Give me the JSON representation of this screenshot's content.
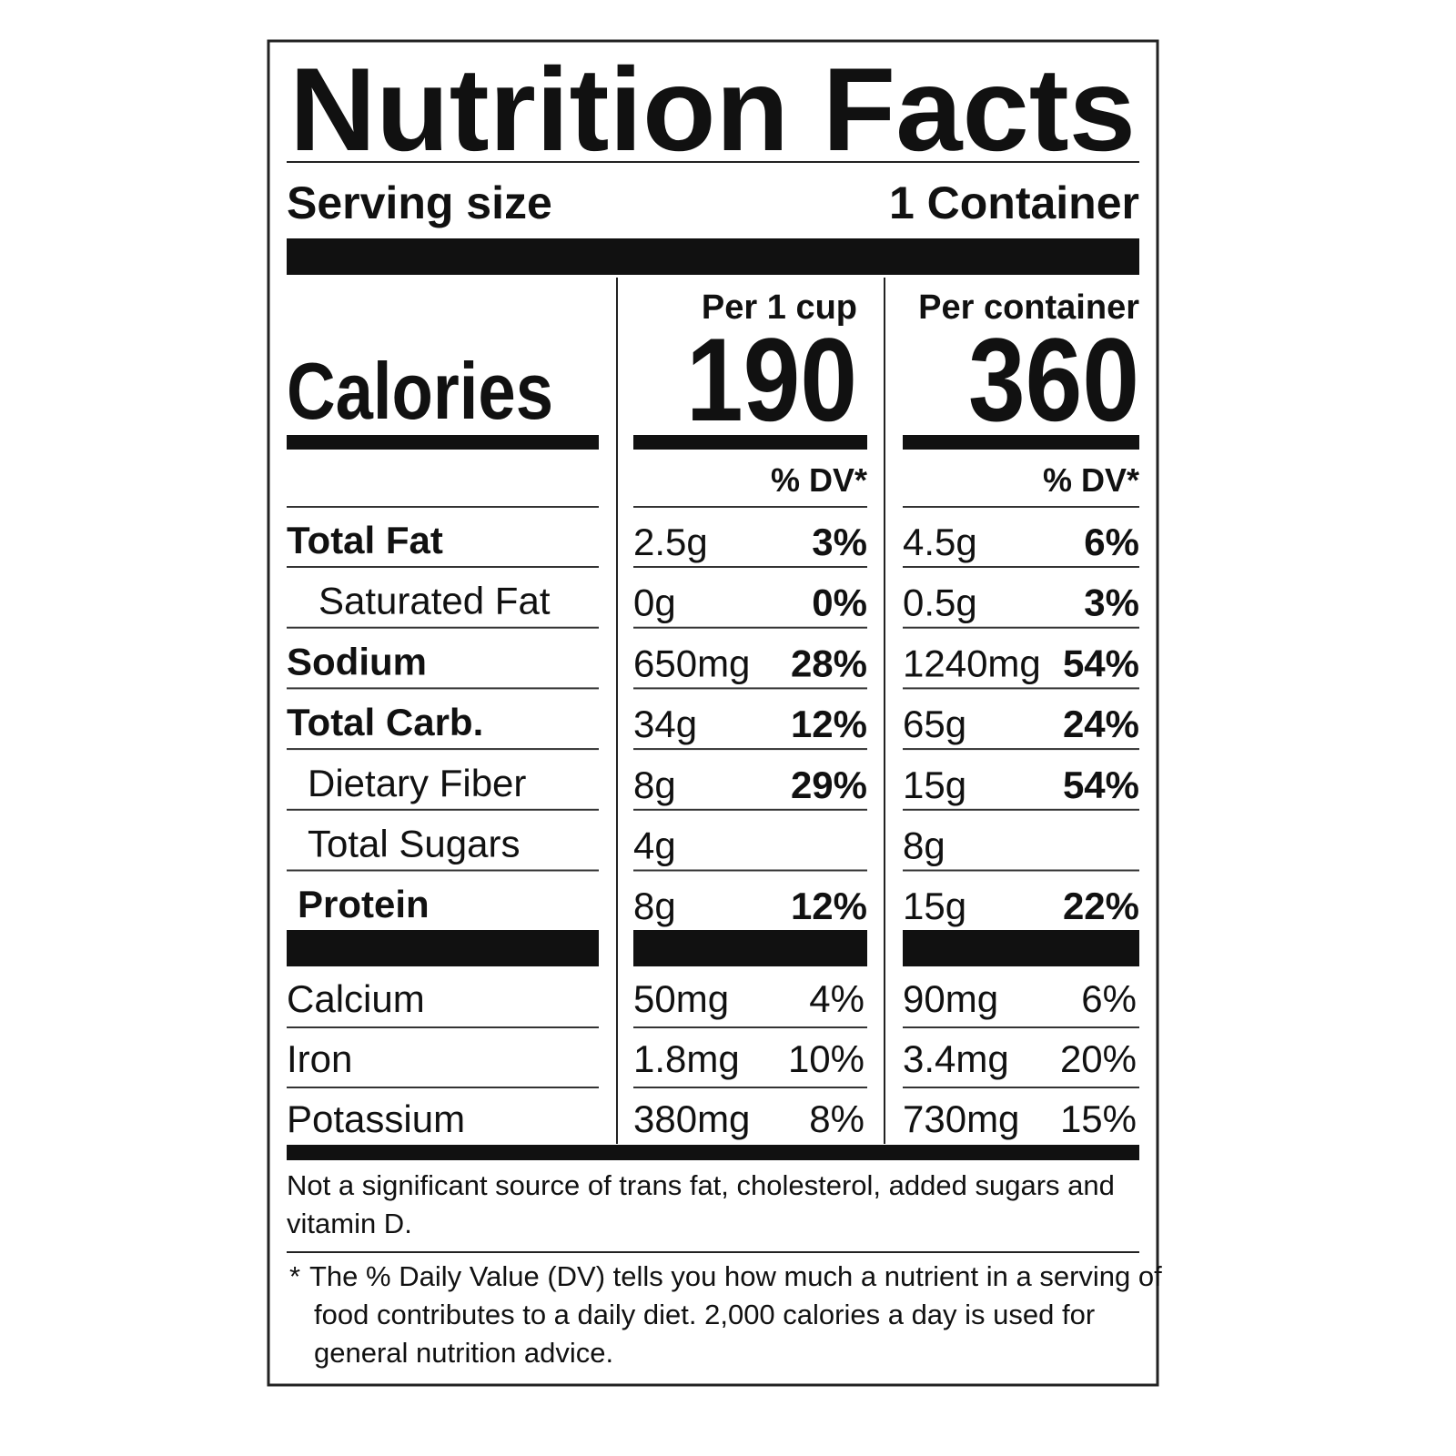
{
  "title": "Nutrition Facts",
  "serving": {
    "label": "Serving size",
    "value": "1 Container"
  },
  "calories_label": "Calories",
  "columns": [
    {
      "header": "Per 1 cup",
      "calories": 190,
      "dv_header": "% DV*"
    },
    {
      "header": "Per container",
      "calories": 360,
      "dv_header": "% DV*"
    }
  ],
  "nutrients": [
    {
      "name": "Total Fat",
      "values": [
        [
          "2.5g",
          "3%"
        ],
        [
          "4.5g",
          "6%"
        ]
      ]
    },
    {
      "name": "Saturated Fat",
      "values": [
        [
          "0g",
          "0%"
        ],
        [
          "0.5g",
          "3%"
        ]
      ]
    },
    {
      "name": "Sodium",
      "values": [
        [
          "650mg",
          "28%"
        ],
        [
          "1240mg",
          "54%"
        ]
      ]
    },
    {
      "name": "Total Carb.",
      "values": [
        [
          "34g",
          "12%"
        ],
        [
          "65g",
          "24%"
        ]
      ]
    },
    {
      "name": "Dietary Fiber",
      "values": [
        [
          "8g",
          "29%"
        ],
        [
          "15g",
          "54%"
        ]
      ]
    },
    {
      "name": "Total Sugars",
      "values": [
        [
          "4g",
          null
        ],
        [
          "8g",
          null
        ]
      ]
    },
    {
      "name": "Protein",
      "values": [
        [
          "8g",
          "12%"
        ],
        [
          "15g",
          "22%"
        ]
      ]
    }
  ],
  "minerals": [
    {
      "name": "Calcium",
      "values": [
        [
          "50mg",
          "4%"
        ],
        [
          "90mg",
          "6%"
        ]
      ]
    },
    {
      "name": "Iron",
      "values": [
        [
          "1.8mg",
          "10%"
        ],
        [
          "3.4mg",
          "20%"
        ]
      ]
    },
    {
      "name": "Potassium",
      "values": [
        [
          "380mg",
          "8%"
        ],
        [
          "730mg",
          "15%"
        ]
      ]
    }
  ],
  "footnote": [
    "Not a significant source of trans fat, cholesterol, added sugars and",
    "vitamin D."
  ],
  "dv_note": {
    "marker": "*",
    "lines": [
      "The % Daily Value (DV) tells you how much a nutrient in a serving of",
      "food contributes to a daily diet. 2,000 calories a day is used for",
      "general nutrition advice."
    ]
  }
}
